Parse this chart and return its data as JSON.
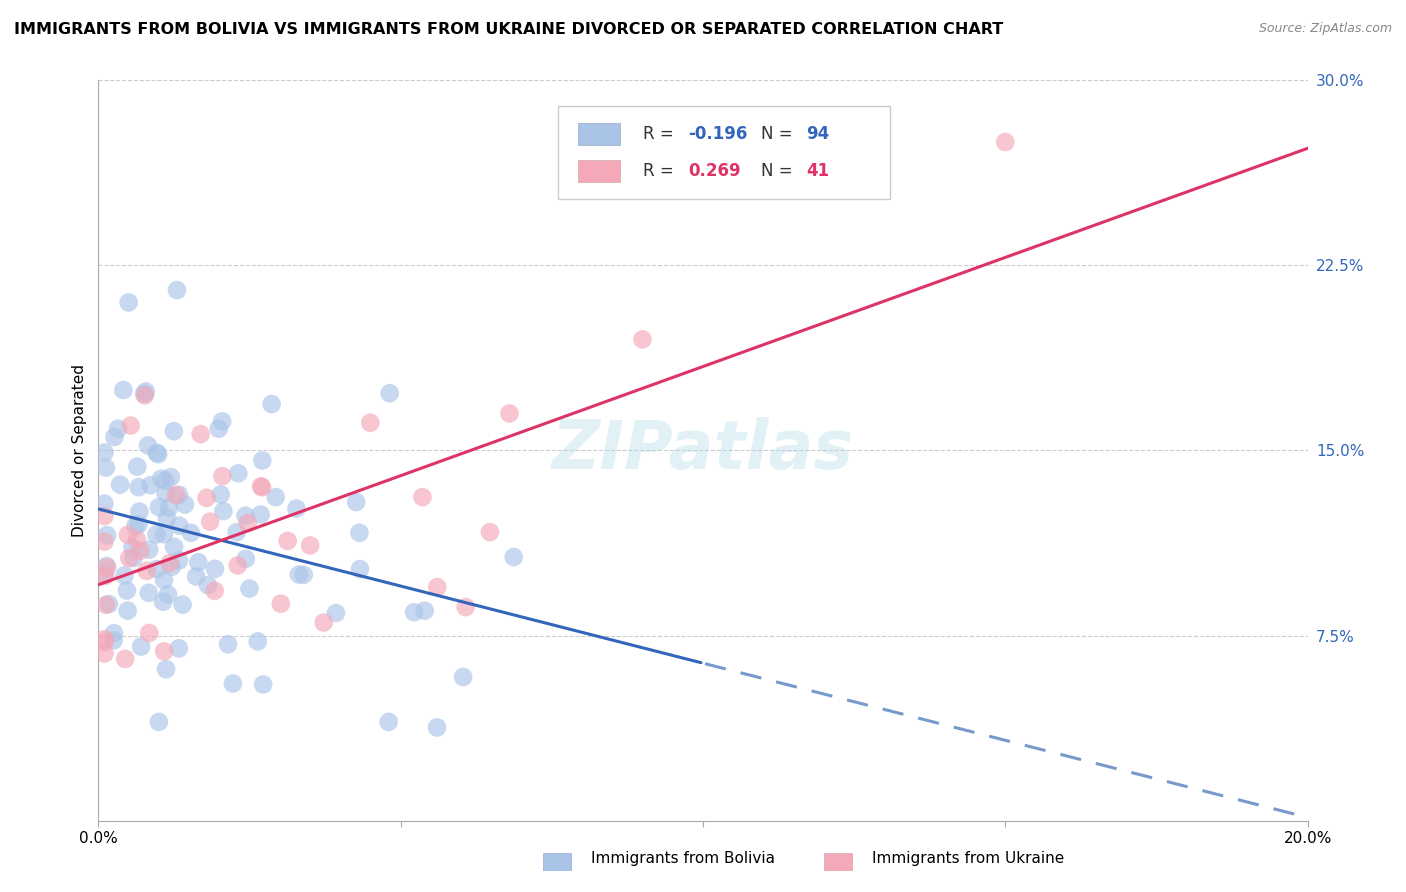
{
  "title": "IMMIGRANTS FROM BOLIVIA VS IMMIGRANTS FROM UKRAINE DIVORCED OR SEPARATED CORRELATION CHART",
  "source": "Source: ZipAtlas.com",
  "ylabel": "Divorced or Separated",
  "xlim": [
    0.0,
    0.2
  ],
  "ylim": [
    0.0,
    0.3
  ],
  "ytick_labels_right": [
    "7.5%",
    "15.0%",
    "22.5%",
    "30.0%"
  ],
  "ytick_values_right": [
    0.075,
    0.15,
    0.225,
    0.3
  ],
  "grid_color": "#cccccc",
  "bolivia_color": "#aac4e8",
  "ukraine_color": "#f4a8b8",
  "bolivia_line_color": "#3366bb",
  "bolivia_dash_color": "#7799cc",
  "ukraine_line_color": "#dd3366",
  "bolivia_label": "Immigrants from Bolivia",
  "ukraine_label": "Immigrants from Ukraine",
  "R_bolivia": "-0.196",
  "N_bolivia": "94",
  "R_ukraine": "0.269",
  "N_ukraine": "41",
  "watermark": "ZIPatlas"
}
